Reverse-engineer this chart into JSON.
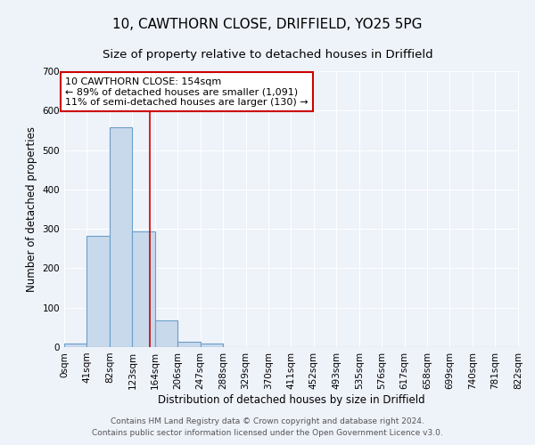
{
  "title": "10, CAWTHORN CLOSE, DRIFFIELD, YO25 5PG",
  "subtitle": "Size of property relative to detached houses in Driffield",
  "xlabel": "Distribution of detached houses by size in Driffield",
  "ylabel": "Number of detached properties",
  "bar_left_edges": [
    0,
    41,
    82,
    123,
    164,
    205,
    246,
    287,
    328,
    369,
    410,
    451,
    492,
    533,
    574,
    615,
    656,
    697,
    738,
    779
  ],
  "bar_heights": [
    8,
    282,
    557,
    293,
    68,
    14,
    8,
    0,
    0,
    0,
    0,
    0,
    0,
    0,
    0,
    0,
    0,
    0,
    0,
    0
  ],
  "bin_width": 41,
  "bar_color": "#c9d9ec",
  "bar_edge_color": "#6b9ec8",
  "ylim": [
    0,
    700
  ],
  "yticks": [
    0,
    100,
    200,
    300,
    400,
    500,
    600,
    700
  ],
  "xtick_labels": [
    "0sqm",
    "41sqm",
    "82sqm",
    "123sqm",
    "164sqm",
    "206sqm",
    "247sqm",
    "288sqm",
    "329sqm",
    "370sqm",
    "411sqm",
    "452sqm",
    "493sqm",
    "535sqm",
    "576sqm",
    "617sqm",
    "658sqm",
    "699sqm",
    "740sqm",
    "781sqm",
    "822sqm"
  ],
  "vline_x": 154,
  "vline_color": "#cc0000",
  "annotation_text": "10 CAWTHORN CLOSE: 154sqm\n← 89% of detached houses are smaller (1,091)\n11% of semi-detached houses are larger (130) →",
  "annotation_box_color": "#cc0000",
  "annotation_fill": "#ffffff",
  "footer_line1": "Contains HM Land Registry data © Crown copyright and database right 2024.",
  "footer_line2": "Contains public sector information licensed under the Open Government Licence v3.0.",
  "background_color": "#eef2f9",
  "grid_color": "#ffffff",
  "title_fontsize": 11,
  "subtitle_fontsize": 9.5,
  "axis_label_fontsize": 8.5,
  "tick_fontsize": 7.5,
  "annotation_fontsize": 8,
  "footer_fontsize": 6.5
}
